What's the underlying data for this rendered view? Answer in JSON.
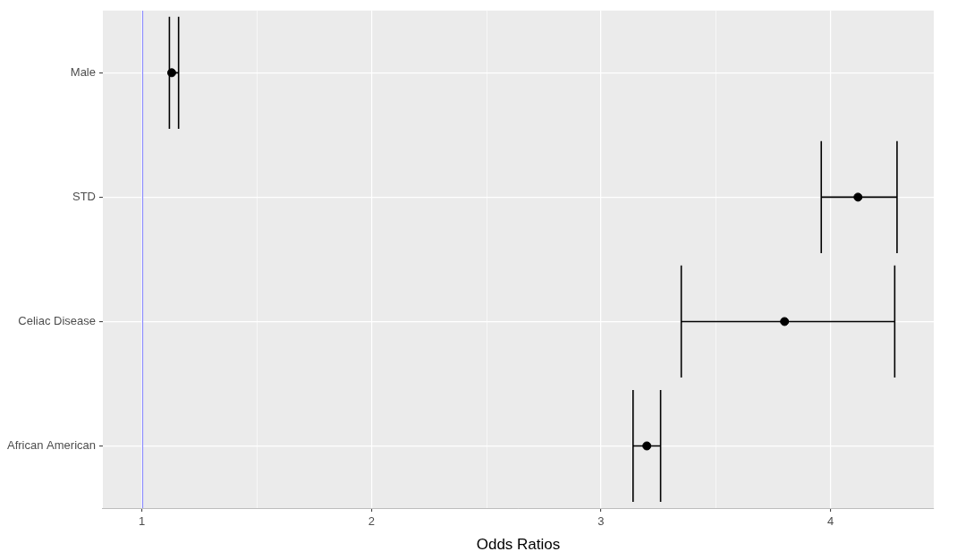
{
  "chart_data": {
    "type": "scatter",
    "x_label": "Odds Ratios",
    "categories": [
      "Male",
      "STD",
      "Celiac Disease",
      "African American"
    ],
    "values": [
      1.13,
      4.12,
      3.8,
      3.2
    ],
    "ci_lower": [
      1.12,
      3.96,
      3.35,
      3.14
    ],
    "ci_upper": [
      1.16,
      4.29,
      4.28,
      3.26
    ],
    "reference_line": 1,
    "color": "#000000",
    "xlim": [
      0.83,
      4.45
    ],
    "xticks": [
      1,
      2,
      3,
      4
    ],
    "grid": true
  }
}
